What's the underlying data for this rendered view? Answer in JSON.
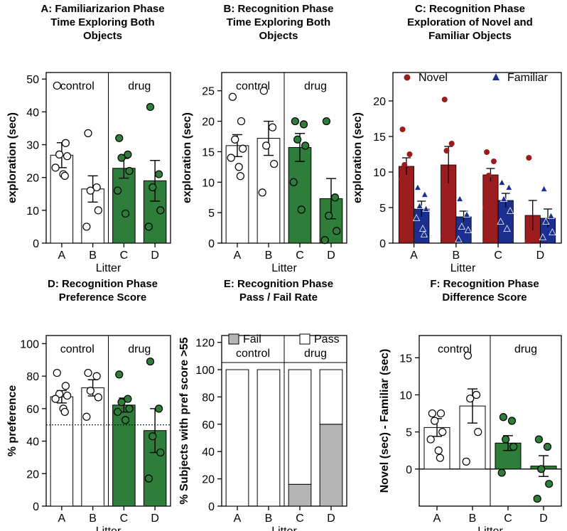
{
  "chart_data": [
    {
      "type": "bar",
      "title_lines": [
        "A: Familiarizarion Phase",
        "Time Exploring Both",
        "Objects"
      ],
      "xlabel": "Litter",
      "ylabel": "exploration (sec)",
      "ylim": [
        0,
        52
      ],
      "yticks": [
        0,
        10,
        20,
        30,
        40,
        50
      ],
      "categories": [
        "A",
        "B",
        "C",
        "D"
      ],
      "groups": [
        {
          "label": "control",
          "categories": [
            "A",
            "B"
          ]
        },
        {
          "label": "drug",
          "categories": [
            "C",
            "D"
          ]
        }
      ],
      "bar_colors": [
        "#ffffff",
        "#ffffff",
        "#2e7d3a",
        "#2e7d3a"
      ],
      "values": [
        26.8,
        16.5,
        22.8,
        19.0
      ],
      "error": [
        3.8,
        4.0,
        3.0,
        6.2
      ],
      "points": [
        [
          48,
          30.5,
          27,
          26.5,
          23,
          21,
          20.5
        ],
        [
          33.5,
          17,
          16,
          10,
          5
        ],
        [
          32,
          27,
          26,
          22,
          16,
          9
        ],
        [
          41.5,
          21,
          17,
          10,
          5
        ]
      ],
      "reference_line": null
    },
    {
      "type": "bar",
      "title_lines": [
        "B: Recognition Phase",
        "Time Exploring Both",
        "Objects"
      ],
      "xlabel": "Litter",
      "ylabel": "exploration (sec)",
      "ylim": [
        0,
        28
      ],
      "yticks": [
        0,
        5,
        10,
        15,
        20,
        25
      ],
      "categories": [
        "A",
        "B",
        "C",
        "D"
      ],
      "groups": [
        {
          "label": "control",
          "categories": [
            "A",
            "B"
          ]
        },
        {
          "label": "drug",
          "categories": [
            "C",
            "D"
          ]
        }
      ],
      "bar_colors": [
        "#ffffff",
        "#ffffff",
        "#2e7d3a",
        "#2e7d3a"
      ],
      "values": [
        16.0,
        17.2,
        15.7,
        7.3
      ],
      "error": [
        1.8,
        2.8,
        2.3,
        3.3
      ],
      "points": [
        [
          24,
          20,
          17,
          15.5,
          14,
          12.5,
          11
        ],
        [
          25,
          19,
          16,
          13,
          8.3
        ],
        [
          20,
          19.5,
          17,
          16,
          10,
          5.5
        ],
        [
          20,
          7.5,
          4.5,
          2,
          0.5
        ]
      ],
      "reference_line": null
    },
    {
      "type": "bar",
      "title_lines": [
        "C: Recognition Phase",
        "Exploration of Novel and",
        "Familiar Objects"
      ],
      "xlabel": "Litter",
      "ylabel": "exploration (sec)",
      "ylim": [
        0,
        24
      ],
      "yticks": [
        0,
        5,
        10,
        15,
        20
      ],
      "categories": [
        "A",
        "B",
        "C",
        "D"
      ],
      "series": [
        {
          "name": "Novel",
          "color": "#9b1c1f",
          "marker": "circle",
          "values": [
            10.8,
            11.0,
            9.6,
            3.9
          ],
          "error": [
            1.2,
            2.6,
            0.9,
            2.1
          ],
          "points": [
            [
              16,
              12.5,
              11,
              10,
              9,
              7,
              5.5
            ],
            [
              20.2,
              14,
              13,
              5,
              1
            ],
            [
              12.8,
              11.5,
              9.5,
              7,
              5
            ],
            [
              12,
              3,
              1,
              0.5,
              0.3
            ]
          ]
        },
        {
          "name": "Familiar",
          "color": "#1a2f8f",
          "marker": "triangle",
          "values": [
            4.8,
            3.7,
            6.0,
            3.5
          ],
          "error": [
            1.1,
            0.8,
            1.0,
            1.3
          ],
          "points": [
            [
              7.8,
              6.8,
              5.2,
              4.8,
              3.5,
              2,
              1.2
            ],
            [
              6.2,
              4,
              2.3,
              1.8,
              0.5
            ],
            [
              8.5,
              7.8,
              6.2,
              4.5,
              3,
              2
            ],
            [
              7.6,
              3.8,
              3,
              1.5,
              0.8
            ]
          ]
        }
      ],
      "reference_line": null
    },
    {
      "type": "bar",
      "title_lines": [
        "D: Recognition Phase",
        "Preference Score"
      ],
      "xlabel": "Litter",
      "ylabel": "% preference",
      "ylim": [
        0,
        105
      ],
      "yticks": [
        0,
        20,
        40,
        60,
        80,
        100
      ],
      "categories": [
        "A",
        "B",
        "C",
        "D"
      ],
      "groups": [
        {
          "label": "control",
          "categories": [
            "A",
            "B"
          ]
        },
        {
          "label": "drug",
          "categories": [
            "C",
            "D"
          ]
        }
      ],
      "bar_colors": [
        "#ffffff",
        "#ffffff",
        "#2e7d3a",
        "#2e7d3a"
      ],
      "values": [
        67.3,
        72.8,
        62.2,
        46.5
      ],
      "error": [
        3.8,
        5.0,
        4.3,
        13.5
      ],
      "points": [
        [
          82,
          74,
          69,
          68,
          66,
          60,
          58
        ],
        [
          82,
          80,
          71,
          67,
          55
        ],
        [
          81,
          66,
          64,
          60,
          58,
          53
        ],
        [
          89,
          60,
          43,
          33,
          17
        ]
      ],
      "reference_line": 50
    },
    {
      "type": "bar",
      "title_lines": [
        "E: Recognition Phase",
        "Pass / Fail Rate"
      ],
      "xlabel": "Litter",
      "ylabel": "% Subjects with pref score >55",
      "ylim": [
        0,
        125
      ],
      "yticks": [
        0,
        20,
        40,
        60,
        80,
        100,
        120
      ],
      "categories": [
        "A",
        "B",
        "C",
        "D"
      ],
      "groups": [
        {
          "label": "control",
          "categories": [
            "A",
            "B"
          ]
        },
        {
          "label": "drug",
          "categories": [
            "C",
            "D"
          ]
        }
      ],
      "stacked": [
        {
          "name": "Fail",
          "color": "#b5b5b5",
          "values": [
            0,
            0,
            16,
            60
          ]
        },
        {
          "name": "Pass",
          "color": "#ffffff",
          "values": [
            100,
            100,
            84,
            40
          ]
        }
      ],
      "reference_line": null
    },
    {
      "type": "bar",
      "title_lines": [
        "F: Recognition Phase",
        "Difference Score"
      ],
      "xlabel": "Litter",
      "ylabel": "Novel (sec) - Familiar (sec)",
      "ylim": [
        -5,
        18
      ],
      "yticks": [
        0,
        5,
        10,
        15
      ],
      "categories": [
        "A",
        "B",
        "C",
        "D"
      ],
      "groups": [
        {
          "label": "control",
          "categories": [
            "A",
            "B"
          ]
        },
        {
          "label": "drug",
          "categories": [
            "C",
            "D"
          ]
        }
      ],
      "bar_colors": [
        "#ffffff",
        "#ffffff",
        "#2e7d3a",
        "#2e7d3a"
      ],
      "values": [
        5.6,
        8.5,
        3.5,
        0.4
      ],
      "error": [
        1.2,
        2.3,
        1.0,
        1.4
      ],
      "points": [
        [
          7.5,
          7.5,
          6.5,
          5,
          4,
          2.5,
          1.5
        ],
        [
          15.3,
          10,
          9.5,
          5,
          1
        ],
        [
          7,
          6.5,
          4,
          3,
          -0.5
        ],
        [
          4,
          3,
          0,
          -2,
          -4
        ]
      ],
      "reference_line": 0
    }
  ]
}
